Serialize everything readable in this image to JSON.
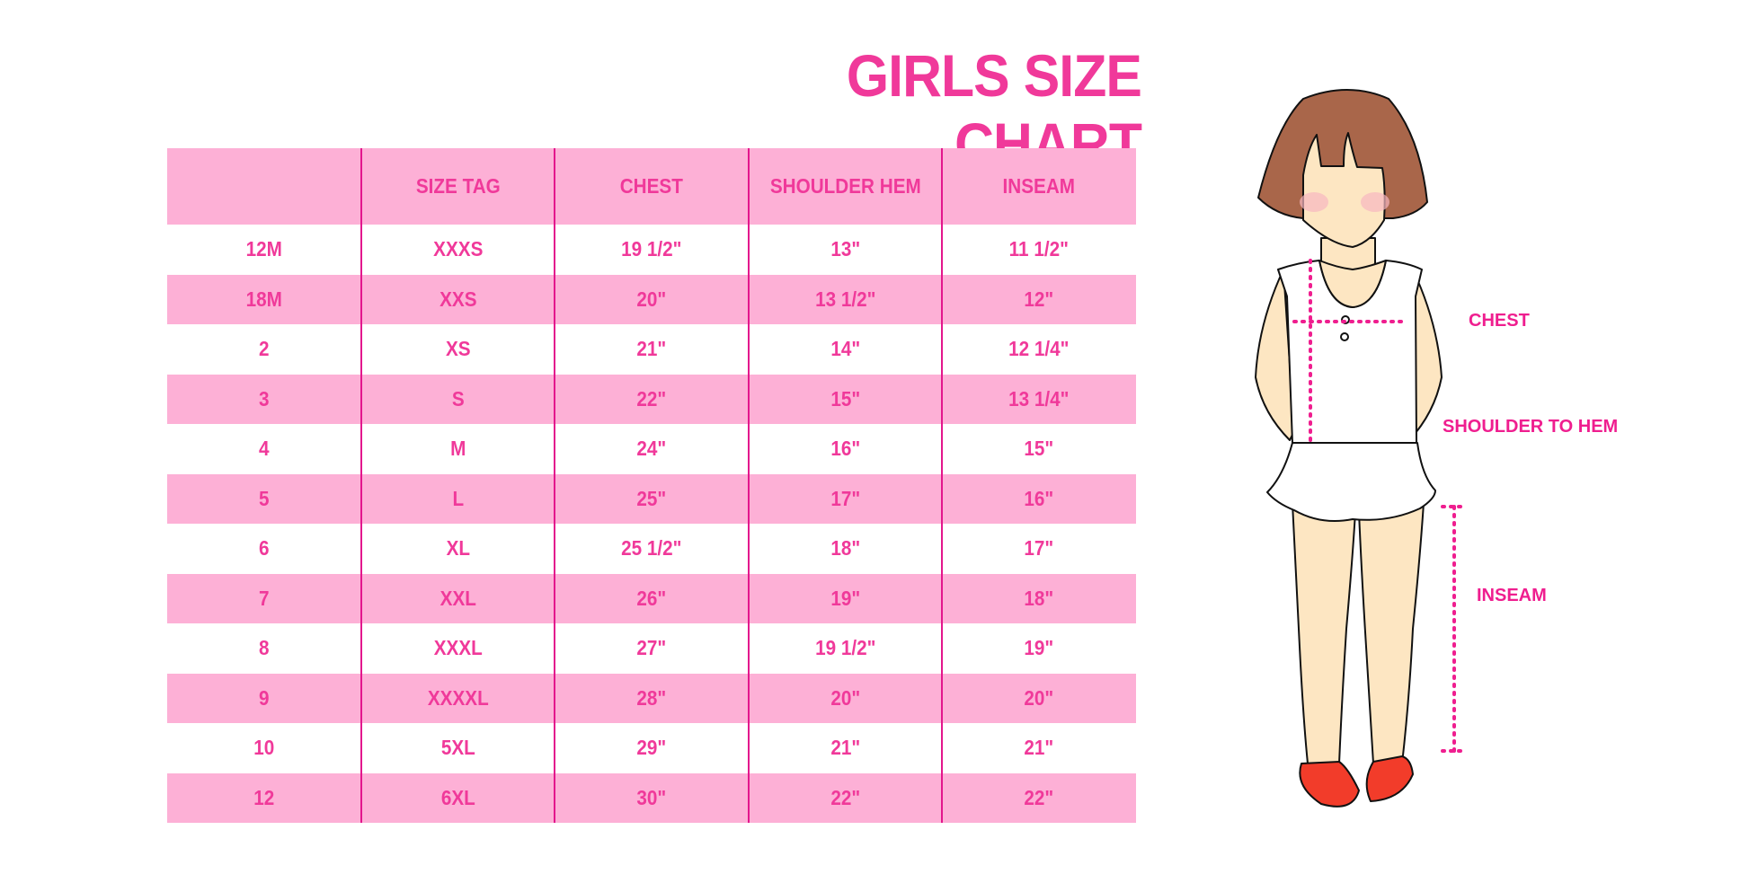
{
  "title": "GIRLS SIZE CHART",
  "colors": {
    "accent": "#f0399a",
    "row_pink": "#fdb0d6",
    "line": "#e3168d",
    "label": "#ef1e8f"
  },
  "table": {
    "headers": [
      "",
      "SIZE TAG",
      "CHEST",
      "SHOULDER HEM",
      "INSEAM"
    ],
    "rows": [
      [
        "12M",
        "XXXS",
        "19 1/2\"",
        "13\"",
        "11 1/2\""
      ],
      [
        "18M",
        "XXS",
        "20\"",
        "13 1/2\"",
        "12\""
      ],
      [
        "2",
        "XS",
        "21\"",
        "14\"",
        "12 1/4\""
      ],
      [
        "3",
        "S",
        "22\"",
        "15\"",
        "13 1/4\""
      ],
      [
        "4",
        "M",
        "24\"",
        "16\"",
        "15\""
      ],
      [
        "5",
        "L",
        "25\"",
        "17\"",
        "16\""
      ],
      [
        "6",
        "XL",
        "25 1/2\"",
        "18\"",
        "17\""
      ],
      [
        "7",
        "XXL",
        "26\"",
        "19\"",
        "18\""
      ],
      [
        "8",
        "XXXL",
        "27\"",
        "19 1/2\"",
        "19\""
      ],
      [
        "9",
        "XXXXL",
        "28\"",
        "20\"",
        "20\""
      ],
      [
        "10",
        "5XL",
        "29\"",
        "21\"",
        "21\""
      ],
      [
        "12",
        "6XL",
        "30\"",
        "22\"",
        "22\""
      ]
    ]
  },
  "figure": {
    "labels": {
      "chest": "CHEST",
      "shoulder_to_hem": "SHOULDER TO HEM",
      "inseam": "INSEAM"
    }
  }
}
